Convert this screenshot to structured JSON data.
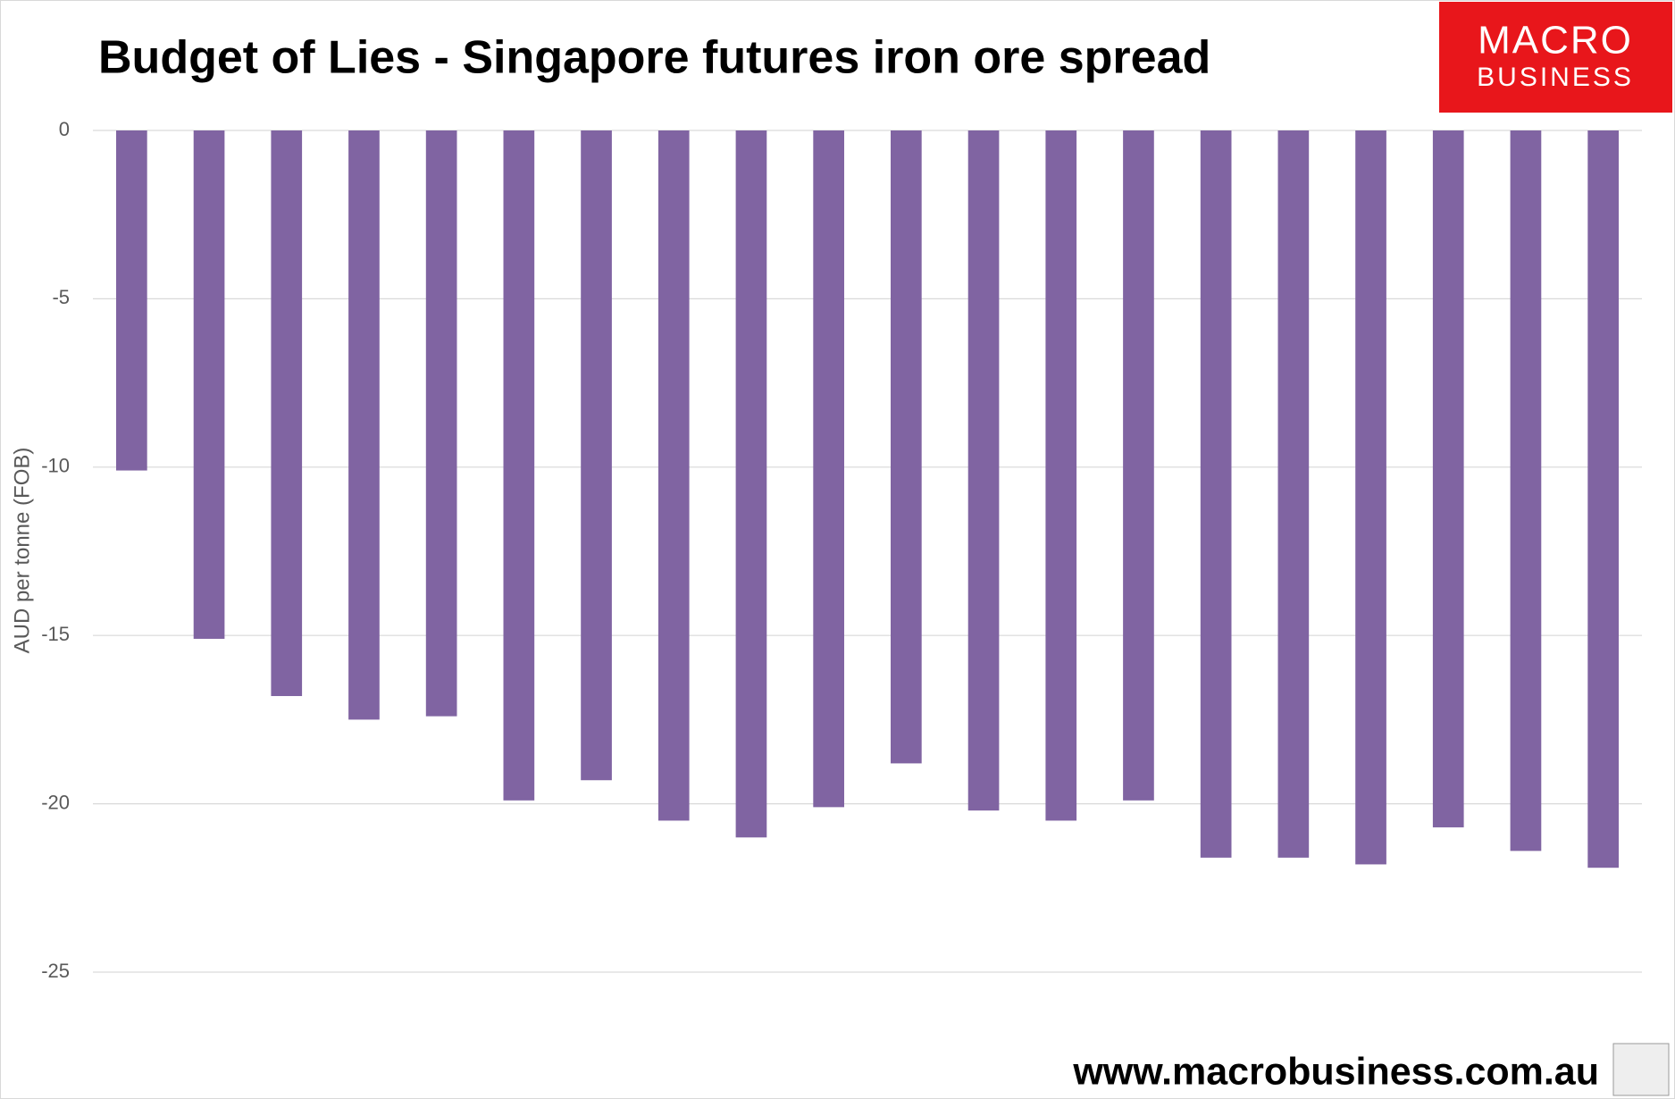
{
  "chart_data": {
    "type": "bar",
    "title": "Budget of Lies - Singapore futures iron ore spread",
    "y_label": "AUD per tonne (FOB)",
    "logo": [
      "MACRO",
      "BUSINESS"
    ],
    "source": "www.macrobusiness.com.au",
    "categories": [
      null,
      null,
      null,
      null,
      null,
      null,
      null,
      null,
      null,
      null,
      null,
      null,
      null,
      null,
      null,
      null,
      null,
      null,
      null,
      null
    ],
    "values": [
      -10.1,
      -15.1,
      -16.8,
      -17.5,
      -17.4,
      -19.9,
      -19.3,
      -20.5,
      -21.0,
      -20.1,
      -18.8,
      -20.2,
      -20.5,
      -19.9,
      -21.6,
      -21.6,
      -21.8,
      -20.7,
      -21.4,
      -21.9
    ],
    "color": "#8064a2",
    "ylim": [
      -25,
      0
    ],
    "yticks": [
      0,
      -5,
      -10,
      -15,
      -20,
      -25
    ],
    "grid": true
  }
}
